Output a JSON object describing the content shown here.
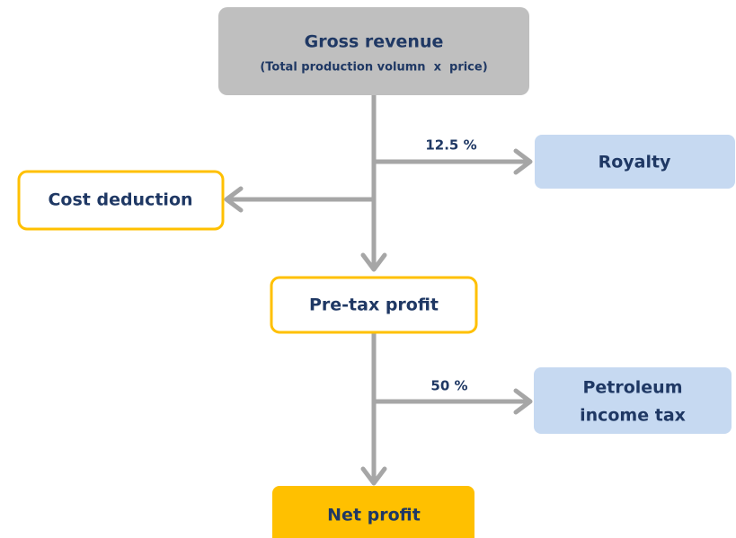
{
  "nodes": [
    {
      "label": "Gross revenue",
      "sublabel": "(Total production volumn  x  price)"
    },
    {
      "label": "Royalty"
    },
    {
      "label": "Cost deduction"
    },
    {
      "label": "Pre-tax profit"
    },
    {
      "lines": [
        "Petroleum",
        "income tax"
      ]
    },
    {
      "label": "Net profit"
    }
  ],
  "edges": [
    {
      "label": "12.5 %"
    },
    {
      "label": "50 %"
    }
  ]
}
